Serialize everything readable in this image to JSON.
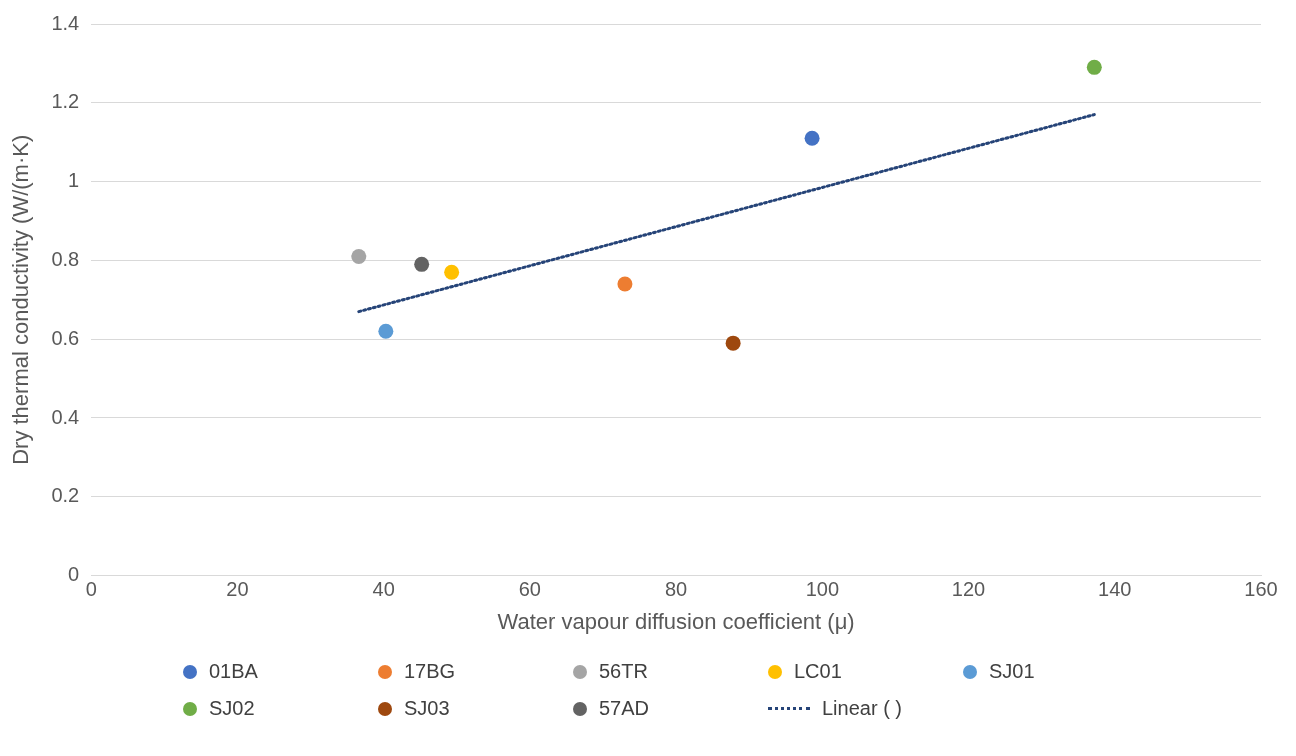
{
  "chart_data": {
    "type": "scatter",
    "xlabel": "Water vapour diffusion coefficient (μ)",
    "ylabel": "Dry thermal conductivity (W/(m·K)",
    "xlim": [
      0,
      160
    ],
    "xticks": [
      0,
      20,
      40,
      60,
      80,
      100,
      120,
      140,
      160
    ],
    "ylim": [
      0,
      1.4
    ],
    "yticks": [
      0,
      0.2,
      0.4,
      0.6,
      0.8,
      1,
      1.2,
      1.4
    ],
    "grid": "y",
    "legend": "bottom",
    "marker": "circle",
    "series": [
      {
        "name": "01BA",
        "color": "#4472c4",
        "x": [
          98.6
        ],
        "values": [
          1.11
        ]
      },
      {
        "name": "17BG",
        "color": "#ed7d31",
        "x": [
          73.0
        ],
        "values": [
          0.74
        ]
      },
      {
        "name": "56TR",
        "color": "#a5a5a5",
        "x": [
          36.6
        ],
        "values": [
          0.81
        ]
      },
      {
        "name": "LC01",
        "color": "#ffc000",
        "x": [
          49.3
        ],
        "values": [
          0.77
        ]
      },
      {
        "name": "SJ01",
        "color": "#5b9bd5",
        "x": [
          40.3
        ],
        "values": [
          0.62
        ]
      },
      {
        "name": "SJ02",
        "color": "#70ad47",
        "x": [
          137.2
        ],
        "values": [
          1.29
        ]
      },
      {
        "name": "SJ03",
        "color": "#9e480e",
        "x": [
          87.8
        ],
        "values": [
          0.59
        ]
      },
      {
        "name": "57AD",
        "color": "#636363",
        "x": [
          45.2
        ],
        "values": [
          0.79
        ]
      },
      {
        "name": "Linear ( )",
        "type": "line",
        "color": "#264478",
        "line_style": "dotted",
        "marker": "none",
        "x": [
          36.6,
          137.2
        ],
        "values": [
          0.67,
          1.17
        ]
      }
    ]
  }
}
